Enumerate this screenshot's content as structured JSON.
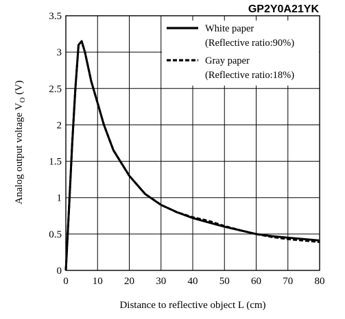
{
  "chart_data": {
    "type": "line",
    "title": "GP2Y0A21YK",
    "xlabel": "Distance to reflective object L (cm)",
    "ylabel": "Analog output voltage V",
    "ylabel_subscript": "O",
    "ylabel_unit": "(V)",
    "xlim": [
      0,
      80
    ],
    "ylim": [
      0,
      3.5
    ],
    "x_ticks": [
      0,
      10,
      20,
      30,
      40,
      50,
      60,
      70,
      80
    ],
    "x_tick_labels": [
      "0",
      "10",
      "20",
      "30",
      "40",
      "50",
      "60",
      "70",
      "80"
    ],
    "y_ticks": [
      0,
      0.5,
      1,
      1.5,
      2,
      2.5,
      3,
      3.5
    ],
    "y_tick_labels": [
      "0",
      "0.5",
      "1",
      "1.5",
      "2",
      "2.5",
      "3",
      "3.5"
    ],
    "grid": true,
    "legend_position": "top-right",
    "series": [
      {
        "name": "White paper",
        "name_line2": "(Reflective ratio:90%)",
        "style": "solid",
        "color": "#000000",
        "x": [
          0,
          1,
          2,
          3,
          4,
          5,
          6,
          7,
          8,
          10,
          12,
          15,
          20,
          25,
          30,
          35,
          40,
          45,
          50,
          55,
          60,
          65,
          70,
          75,
          80
        ],
        "y": [
          0.0,
          0.85,
          1.75,
          2.5,
          3.1,
          3.15,
          3.0,
          2.8,
          2.6,
          2.3,
          2.0,
          1.65,
          1.3,
          1.05,
          0.9,
          0.8,
          0.72,
          0.66,
          0.6,
          0.55,
          0.5,
          0.47,
          0.45,
          0.43,
          0.41
        ]
      },
      {
        "name": "Gray paper",
        "name_line2": "(Reflective ratio:18%)",
        "style": "dashed",
        "color": "#000000",
        "x": [
          0,
          1,
          2,
          3,
          4,
          5,
          6,
          7,
          8,
          10,
          12,
          15,
          20,
          25,
          30,
          35,
          40,
          45,
          50,
          55,
          60,
          65,
          70,
          75,
          80
        ],
        "y": [
          0.0,
          0.85,
          1.75,
          2.5,
          3.1,
          3.15,
          3.0,
          2.8,
          2.6,
          2.3,
          2.0,
          1.65,
          1.3,
          1.05,
          0.9,
          0.8,
          0.73,
          0.68,
          0.61,
          0.55,
          0.5,
          0.46,
          0.43,
          0.41,
          0.39
        ]
      }
    ]
  }
}
